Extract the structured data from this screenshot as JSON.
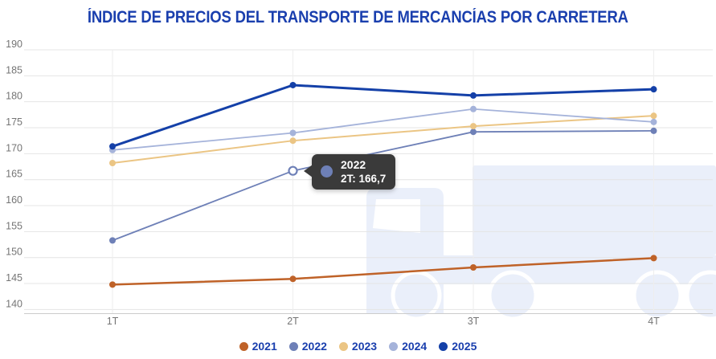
{
  "title": "ÍNDICE DE PRECIOS DEL TRANSPORTE DE MERCANCÍAS POR CARRETERA",
  "tooltip": {
    "series": "2022",
    "value_label": "2T: 166,7"
  },
  "colors": {
    "title_text": "#1a3fae",
    "legend_text": "#1a3fae",
    "axis_label": "#757575",
    "gridline": "#e4e4e4",
    "vertical_gridline": "#eeeeee",
    "axis_line": "#cccccc",
    "tooltip_bg": "#3a3a3a",
    "tooltip_text": "#ffffff",
    "watermark": "#eaeffa",
    "background": "#ffffff"
  },
  "chart_data": {
    "type": "line",
    "title": "ÍNDICE DE PRECIOS DEL TRANSPORTE DE MERCANCÍAS POR CARRETERA",
    "categories": [
      "1T",
      "2T",
      "3T",
      "4T"
    ],
    "y_ticks": [
      190,
      185,
      180,
      175,
      170,
      165,
      160,
      155,
      150,
      145,
      140
    ],
    "ylim": [
      140,
      190
    ],
    "xlabel": "",
    "ylabel": "",
    "grid": true,
    "legend_position": "bottom",
    "series": [
      {
        "name": "2021",
        "color": "#bf6228",
        "values": [
          144.8,
          145.9,
          148.1,
          149.9
        ]
      },
      {
        "name": "2022",
        "color": "#6e80b7",
        "values": [
          153.3,
          166.7,
          174.2,
          174.4
        ]
      },
      {
        "name": "2023",
        "color": "#ebc584",
        "values": [
          168.2,
          172.5,
          175.3,
          177.3
        ]
      },
      {
        "name": "2024",
        "color": "#a5b3da",
        "values": [
          170.7,
          174.0,
          178.6,
          176.1
        ]
      },
      {
        "name": "2025",
        "color": "#1440a8",
        "values": [
          171.4,
          183.2,
          181.2,
          182.4
        ]
      }
    ],
    "highlighted_point": {
      "series": "2022",
      "category": "2T",
      "value": 166.7
    }
  }
}
